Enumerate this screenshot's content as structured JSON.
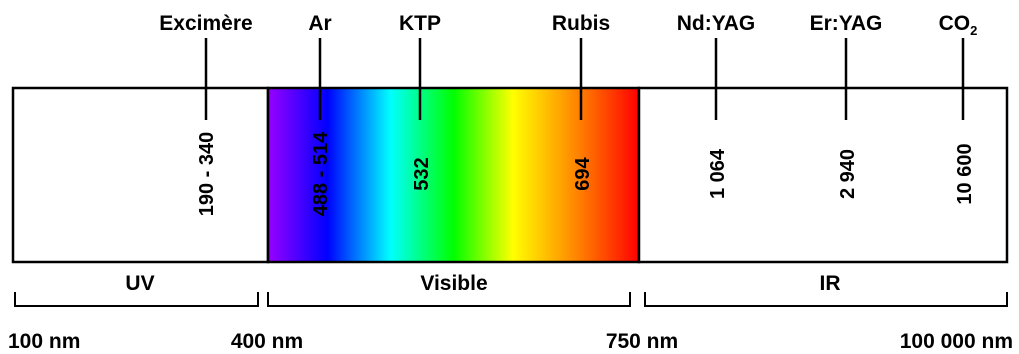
{
  "lasers": [
    {
      "name": "Excimère",
      "wavelength": "190 - 340"
    },
    {
      "name": "Ar",
      "wavelength": "488 - 514"
    },
    {
      "name": "KTP",
      "wavelength": "532"
    },
    {
      "name": "Rubis",
      "wavelength": "694"
    },
    {
      "name": "Nd:YAG",
      "wavelength": "1 064"
    },
    {
      "name": "Er:YAG",
      "wavelength": "2 940"
    },
    {
      "name": "CO",
      "name_sub": "2",
      "wavelength": "10 600"
    }
  ],
  "regions": [
    {
      "label": "UV"
    },
    {
      "label": "Visible"
    },
    {
      "label": "IR"
    }
  ],
  "boundaries": [
    "100 nm",
    "400 nm",
    "750 nm",
    "100 000 nm"
  ],
  "spectrum_colors": [
    "#9900ff",
    "#0000ff",
    "#00ffff",
    "#00ff00",
    "#ffff00",
    "#ff7f00",
    "#ff0000"
  ]
}
